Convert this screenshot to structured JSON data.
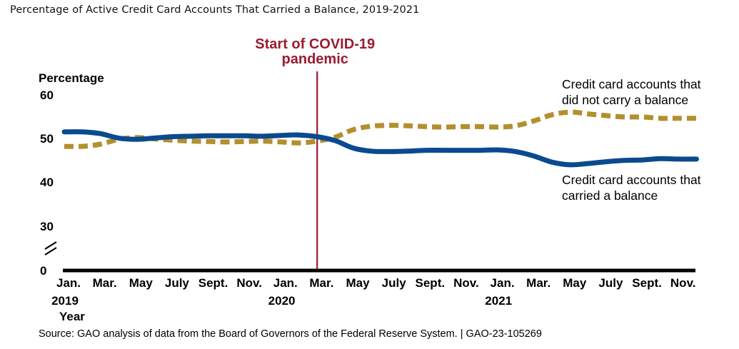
{
  "title": "Percentage of Active Credit Card Accounts That Carried a Balance, 2019-2021",
  "source": "Source: GAO analysis of data from the Board of Governors of the Federal Reserve System.  |  GAO-23-105269",
  "colors": {
    "carried": "#0a4a8f",
    "not_carried": "#b38f2e",
    "event_line": "#9b1b30",
    "axis": "#000000"
  },
  "chart_data": {
    "type": "line",
    "ylabel": "Percentage",
    "xlabel": "Year",
    "ylim": [
      0,
      60
    ],
    "y_axis_break": true,
    "y_ticks": [
      0,
      30,
      40,
      50,
      60
    ],
    "x_tick_labels": [
      "Jan.",
      "Mar.",
      "May",
      "July",
      "Sept.",
      "Nov.",
      "Jan.",
      "Mar.",
      "May",
      "July",
      "Sept.",
      "Nov.",
      "Jan.",
      "Mar.",
      "May",
      "July",
      "Sept.",
      "Nov."
    ],
    "year_labels": [
      "2019",
      "2020",
      "2021"
    ],
    "x": [
      "2019-01",
      "2019-02",
      "2019-03",
      "2019-04",
      "2019-05",
      "2019-06",
      "2019-07",
      "2019-08",
      "2019-09",
      "2019-10",
      "2019-11",
      "2019-12",
      "2020-01",
      "2020-02",
      "2020-03",
      "2020-04",
      "2020-05",
      "2020-06",
      "2020-07",
      "2020-08",
      "2020-09",
      "2020-10",
      "2020-11",
      "2020-12",
      "2021-01",
      "2021-02",
      "2021-03",
      "2021-04",
      "2021-05",
      "2021-06",
      "2021-07",
      "2021-08",
      "2021-09",
      "2021-10",
      "2021-11",
      "2021-12"
    ],
    "event": {
      "x": "2020-03",
      "label_line1": "Start of COVID-19",
      "label_line2": "pandemic"
    },
    "series": [
      {
        "name": "Credit card accounts that carried a balance",
        "label_line1": "Credit card accounts that",
        "label_line2": "carried a balance",
        "style": "solid",
        "values": [
          51.5,
          51.5,
          51.1,
          50.1,
          49.8,
          50.1,
          50.4,
          50.5,
          50.6,
          50.6,
          50.6,
          50.5,
          50.7,
          50.8,
          50.4,
          49.5,
          47.8,
          47.1,
          47.0,
          47.1,
          47.3,
          47.3,
          47.3,
          47.3,
          47.4,
          47.0,
          46.0,
          44.6,
          44.0,
          44.3,
          44.7,
          45.0,
          45.1,
          45.4,
          45.3,
          45.3
        ]
      },
      {
        "name": "Credit card accounts that did not carry a balance",
        "label_line1": "Credit card accounts that",
        "label_line2": "did not carry a balance",
        "style": "dashed",
        "values": [
          48.2,
          48.2,
          48.7,
          49.8,
          50.2,
          49.9,
          49.6,
          49.4,
          49.3,
          49.2,
          49.3,
          49.4,
          49.2,
          49.0,
          49.4,
          50.3,
          52.0,
          52.8,
          53.0,
          52.9,
          52.7,
          52.6,
          52.7,
          52.7,
          52.6,
          52.9,
          54.0,
          55.4,
          56.0,
          55.6,
          55.2,
          54.9,
          54.9,
          54.6,
          54.6,
          54.6
        ]
      }
    ]
  }
}
